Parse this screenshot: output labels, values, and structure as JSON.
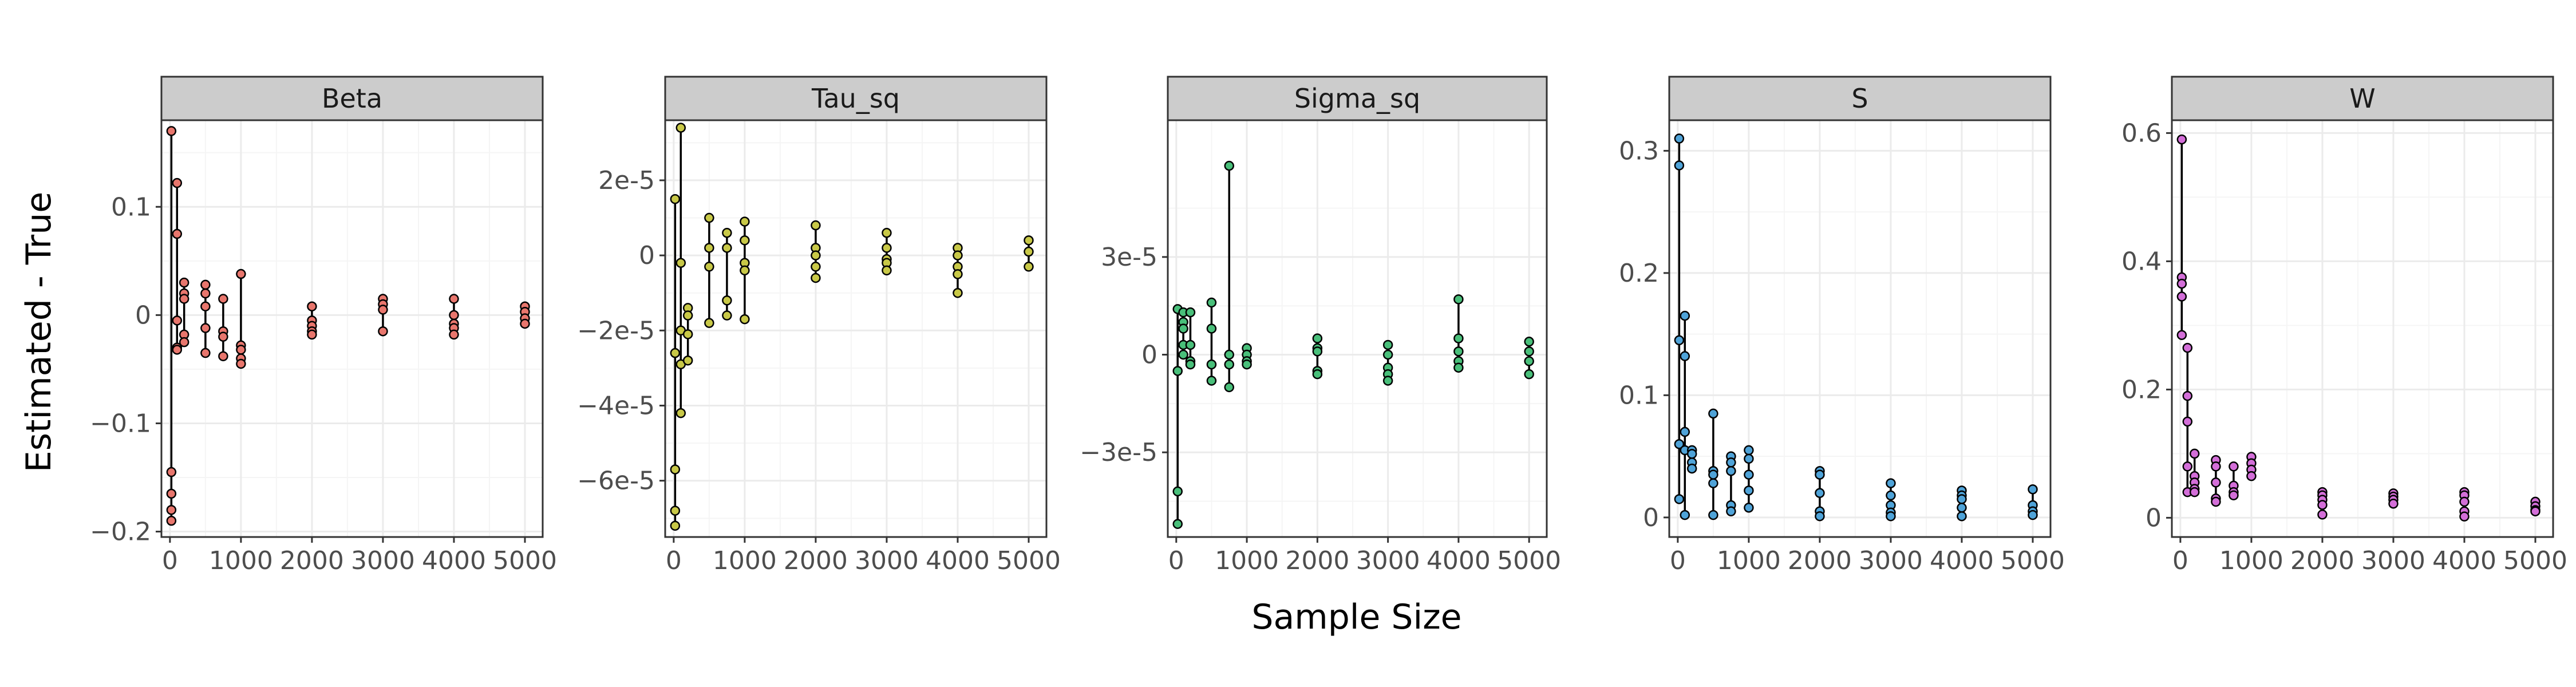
{
  "xlabel": "Sample Size",
  "ylabel": "Estimated - True",
  "colors": {
    "strip_fill": "#cccccc",
    "frame": "#333333",
    "grid_major": "#ebebeb",
    "grid_minor": "#f5f5f5",
    "point_edge": "#000000"
  },
  "chart_data": [
    {
      "type": "scatter",
      "title": "Beta",
      "fill": "#e8766d",
      "xlim": [
        -120,
        5250
      ],
      "ylim": [
        -0.205,
        0.18
      ],
      "xticks": [
        0,
        1000,
        2000,
        3000,
        4000,
        5000
      ],
      "xtick_labels": [
        "0",
        "1000",
        "2000",
        "3000",
        "4000",
        "5000"
      ],
      "yticks": [
        -0.2,
        -0.1,
        0,
        0.1
      ],
      "ytick_labels": [
        "−0.2",
        "−0.1",
        "0",
        "0.1"
      ],
      "grid": true,
      "groups": [
        {
          "x": 20,
          "values": [
            0.17,
            -0.145,
            -0.165,
            -0.18,
            -0.19
          ]
        },
        {
          "x": 100,
          "values": [
            0.122,
            0.075,
            -0.005,
            -0.03,
            -0.032
          ]
        },
        {
          "x": 200,
          "values": [
            0.03,
            0.02,
            0.015,
            -0.018,
            -0.025
          ]
        },
        {
          "x": 500,
          "values": [
            0.028,
            0.02,
            0.008,
            -0.012,
            -0.035
          ]
        },
        {
          "x": 750,
          "values": [
            0.015,
            -0.015,
            -0.02,
            -0.038
          ]
        },
        {
          "x": 1000,
          "values": [
            0.038,
            -0.028,
            -0.032,
            -0.04,
            -0.045
          ]
        },
        {
          "x": 2000,
          "values": [
            0.008,
            -0.005,
            -0.01,
            -0.015,
            -0.018
          ]
        },
        {
          "x": 3000,
          "values": [
            0.015,
            0.01,
            0.005,
            -0.015
          ]
        },
        {
          "x": 4000,
          "values": [
            0.015,
            0,
            -0.008,
            -0.012,
            -0.018
          ]
        },
        {
          "x": 5000,
          "values": [
            0.008,
            0.003,
            -0.003,
            -0.008
          ]
        }
      ]
    },
    {
      "type": "scatter",
      "title": "Tau_sq",
      "fill": "#c8c847",
      "xlim": [
        -120,
        5250
      ],
      "ylim": [
        -7.5e-05,
        3.6e-05
      ],
      "xticks": [
        0,
        1000,
        2000,
        3000,
        4000,
        5000
      ],
      "xtick_labels": [
        "0",
        "1000",
        "2000",
        "3000",
        "4000",
        "5000"
      ],
      "yticks": [
        -6e-05,
        -4e-05,
        -2e-05,
        0,
        2e-05
      ],
      "ytick_labels": [
        "−6e-5",
        "−4e-5",
        "−2e-5",
        "0",
        "2e-5"
      ],
      "grid": true,
      "groups": [
        {
          "x": 20,
          "values": [
            1.5e-05,
            -2.6e-05,
            -5.7e-05,
            -6.8e-05,
            -7.2e-05
          ]
        },
        {
          "x": 100,
          "values": [
            3.4e-05,
            -2e-06,
            -2e-05,
            -2.9e-05,
            -4.2e-05
          ]
        },
        {
          "x": 200,
          "values": [
            -1.4e-05,
            -1.6e-05,
            -2.1e-05,
            -2.8e-05
          ]
        },
        {
          "x": 500,
          "values": [
            1e-05,
            2e-06,
            -3e-06,
            -1.8e-05
          ]
        },
        {
          "x": 750,
          "values": [
            6e-06,
            2e-06,
            -1.2e-05,
            -1.6e-05
          ]
        },
        {
          "x": 1000,
          "values": [
            9e-06,
            4e-06,
            -2e-06,
            -4e-06,
            -1.7e-05
          ]
        },
        {
          "x": 2000,
          "values": [
            8e-06,
            2e-06,
            0,
            -3e-06,
            -6e-06
          ]
        },
        {
          "x": 3000,
          "values": [
            6e-06,
            2e-06,
            -1e-06,
            -2e-06,
            -4e-06
          ]
        },
        {
          "x": 4000,
          "values": [
            2e-06,
            0,
            -3e-06,
            -5e-06,
            -1e-05
          ]
        },
        {
          "x": 5000,
          "values": [
            4e-06,
            1e-06,
            -3e-06
          ]
        }
      ]
    },
    {
      "type": "scatter",
      "title": "Sigma_sq",
      "fill": "#49bf7a",
      "xlim": [
        -120,
        5250
      ],
      "ylim": [
        -5.6e-05,
        7.2e-05
      ],
      "xticks": [
        0,
        1000,
        2000,
        3000,
        4000,
        5000
      ],
      "xtick_labels": [
        "0",
        "1000",
        "2000",
        "3000",
        "4000",
        "5000"
      ],
      "yticks": [
        -3e-05,
        0,
        3e-05
      ],
      "ytick_labels": [
        "−3e-5",
        "0",
        "3e-5"
      ],
      "grid": true,
      "groups": [
        {
          "x": 20,
          "values": [
            1.4e-05,
            -5e-06,
            -4.2e-05,
            -5.2e-05
          ]
        },
        {
          "x": 100,
          "values": [
            1.3e-05,
            1e-05,
            8e-06,
            3e-06,
            0
          ]
        },
        {
          "x": 200,
          "values": [
            1.3e-05,
            3e-06,
            -2e-06,
            -3e-06
          ]
        },
        {
          "x": 500,
          "values": [
            1.6e-05,
            8e-06,
            -3e-06,
            -8e-06
          ]
        },
        {
          "x": 750,
          "values": [
            5.8e-05,
            0,
            -3e-06,
            -1e-05
          ]
        },
        {
          "x": 1000,
          "values": [
            2e-06,
            0,
            -2e-06,
            -3e-06
          ]
        },
        {
          "x": 2000,
          "values": [
            5e-06,
            2e-06,
            1e-06,
            -5e-06,
            -6e-06
          ]
        },
        {
          "x": 3000,
          "values": [
            3e-06,
            0,
            -4e-06,
            -6e-06,
            -8e-06
          ]
        },
        {
          "x": 4000,
          "values": [
            1.7e-05,
            5e-06,
            1e-06,
            -2e-06,
            -4e-06
          ]
        },
        {
          "x": 5000,
          "values": [
            4e-06,
            1e-06,
            -2e-06,
            -6e-06
          ]
        }
      ]
    },
    {
      "type": "scatter",
      "title": "S",
      "fill": "#4fa3d8",
      "xlim": [
        -120,
        5250
      ],
      "ylim": [
        -0.016,
        0.325
      ],
      "xticks": [
        0,
        1000,
        2000,
        3000,
        4000,
        5000
      ],
      "xtick_labels": [
        "0",
        "1000",
        "2000",
        "3000",
        "4000",
        "5000"
      ],
      "yticks": [
        0,
        0.1,
        0.2,
        0.3
      ],
      "ytick_labels": [
        "0",
        "0.1",
        "0.2",
        "0.3"
      ],
      "grid": true,
      "groups": [
        {
          "x": 20,
          "values": [
            0.31,
            0.288,
            0.145,
            0.06,
            0.015
          ]
        },
        {
          "x": 100,
          "values": [
            0.165,
            0.132,
            0.07,
            0.055,
            0.002
          ]
        },
        {
          "x": 200,
          "values": [
            0.055,
            0.052,
            0.045,
            0.04
          ]
        },
        {
          "x": 500,
          "values": [
            0.085,
            0.038,
            0.035,
            0.028,
            0.002
          ]
        },
        {
          "x": 750,
          "values": [
            0.05,
            0.045,
            0.038,
            0.01,
            0.005
          ]
        },
        {
          "x": 1000,
          "values": [
            0.055,
            0.048,
            0.035,
            0.022,
            0.008
          ]
        },
        {
          "x": 2000,
          "values": [
            0.038,
            0.035,
            0.02,
            0.005,
            0.001
          ]
        },
        {
          "x": 3000,
          "values": [
            0.028,
            0.018,
            0.01,
            0.004,
            0.001
          ]
        },
        {
          "x": 4000,
          "values": [
            0.022,
            0.018,
            0.015,
            0.008,
            0.001
          ]
        },
        {
          "x": 5000,
          "values": [
            0.023,
            0.01,
            0.005,
            0.002
          ]
        }
      ]
    },
    {
      "type": "scatter",
      "title": "W",
      "fill": "#d36ed8",
      "xlim": [
        -120,
        5250
      ],
      "ylim": [
        -0.03,
        0.62
      ],
      "xticks": [
        0,
        1000,
        2000,
        3000,
        4000,
        5000
      ],
      "xtick_labels": [
        "0",
        "1000",
        "2000",
        "3000",
        "4000",
        "5000"
      ],
      "yticks": [
        0,
        0.2,
        0.4,
        0.6
      ],
      "ytick_labels": [
        "0",
        "0.2",
        "0.4",
        "0.6"
      ],
      "grid": true,
      "groups": [
        {
          "x": 20,
          "values": [
            0.59,
            0.375,
            0.365,
            0.345,
            0.285
          ]
        },
        {
          "x": 100,
          "values": [
            0.265,
            0.19,
            0.15,
            0.08,
            0.04
          ]
        },
        {
          "x": 200,
          "values": [
            0.1,
            0.065,
            0.055,
            0.045,
            0.04
          ]
        },
        {
          "x": 500,
          "values": [
            0.09,
            0.08,
            0.055,
            0.03,
            0.025
          ]
        },
        {
          "x": 750,
          "values": [
            0.08,
            0.05,
            0.04,
            0.035
          ]
        },
        {
          "x": 1000,
          "values": [
            0.095,
            0.085,
            0.075,
            0.065
          ]
        },
        {
          "x": 2000,
          "values": [
            0.04,
            0.035,
            0.028,
            0.02,
            0.005
          ]
        },
        {
          "x": 3000,
          "values": [
            0.038,
            0.033,
            0.028,
            0.022
          ]
        },
        {
          "x": 4000,
          "values": [
            0.04,
            0.035,
            0.025,
            0.01,
            0.002
          ]
        },
        {
          "x": 5000,
          "values": [
            0.025,
            0.018,
            0.012,
            0.01
          ]
        }
      ]
    }
  ]
}
